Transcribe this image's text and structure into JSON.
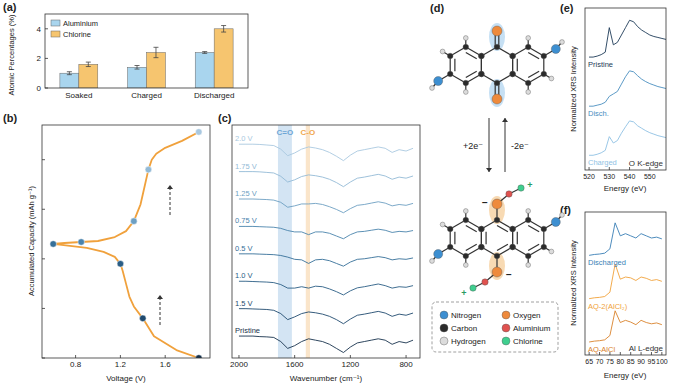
{
  "chart_data": [
    {
      "type": "bar",
      "title": "(a)",
      "y_label": "Atomic Percentages (%)",
      "categories": [
        "Soaked",
        "Charged",
        "Discharged"
      ],
      "series": [
        {
          "name": "Aluminium",
          "color": "#a9d5ee",
          "values": [
            1.0,
            1.4,
            2.4
          ],
          "errors": [
            0.1,
            0.12,
            0.06
          ]
        },
        {
          "name": "Chlorine",
          "color": "#f6c56f",
          "values": [
            1.6,
            2.4,
            4.0
          ],
          "errors": [
            0.15,
            0.35,
            0.22
          ]
        }
      ],
      "ylim": [
        0,
        5
      ],
      "yticks": [
        0,
        2,
        4
      ],
      "grid": false,
      "legend": "upper left"
    },
    {
      "type": "line",
      "title": "(b)",
      "x_label": "Voltage (V)",
      "y_label": "Accumulated Capacity (mAh g⁻¹)",
      "series": [
        {
          "type": "line",
          "color": "#f0a13c",
          "x": [
            1.9,
            1.7,
            1.5,
            1.4,
            1.32,
            1.28,
            1.25,
            1.22,
            1.2,
            1.15,
            1.05,
            0.9,
            0.75,
            0.6,
            0.7,
            0.85,
            1.0,
            1.15,
            1.25,
            1.32,
            1.38,
            1.42,
            1.45,
            1.48,
            1.52,
            1.6,
            1.75,
            1.9
          ],
          "values": [
            0,
            8,
            22,
            40,
            52,
            62,
            75,
            88,
            95,
            102,
            107,
            111,
            113,
            115,
            116,
            117,
            118,
            122,
            128,
            138,
            155,
            175,
            190,
            200,
            206,
            212,
            219,
            228
          ]
        },
        {
          "type": "scatter",
          "marker": "circle",
          "x": [
            1.9,
            1.4,
            1.2,
            0.6,
            0.85,
            1.32,
            1.45,
            1.9
          ],
          "values": [
            0,
            40,
            95,
            115,
            117,
            138,
            190,
            228
          ],
          "colors": [
            "#17324d",
            "#1f4a6e",
            "#2a5d85",
            "#356f99",
            "#4b84ad",
            "#6d9fc2",
            "#93bad6",
            "#a9c8e0"
          ]
        }
      ],
      "xlim": [
        0.5,
        2.0
      ],
      "xticks": [
        0.8,
        1.2,
        1.6
      ],
      "ylim": [
        0,
        235
      ],
      "yticks": [
        0,
        50,
        100,
        150,
        200
      ],
      "tick_labels": "x",
      "grid": false
    },
    {
      "type": "line",
      "title": "(c)",
      "x_label": "Wavenumber (cm⁻¹)",
      "x": [
        2000,
        1950,
        1900,
        1850,
        1800,
        1750,
        1700,
        1650,
        1600,
        1550,
        1500,
        1450,
        1400,
        1350,
        1300,
        1250,
        1200,
        1150,
        1100,
        1050,
        1000,
        950,
        900,
        850,
        800,
        750
      ],
      "series": [
        {
          "name": "2.0 V",
          "color": "#a9c8e0",
          "values": [
            7.8,
            7.8,
            7.8,
            7.79,
            7.77,
            7.75,
            7.62,
            7.38,
            7.48,
            7.62,
            7.7,
            7.66,
            7.6,
            7.5,
            7.36,
            7.2,
            7.4,
            7.55,
            7.6,
            7.65,
            7.7,
            7.65,
            7.5,
            7.6,
            7.55,
            7.65
          ]
        },
        {
          "name": "1.75 V",
          "color": "#93bad6",
          "values": [
            6.8,
            6.8,
            6.8,
            6.79,
            6.77,
            6.75,
            6.63,
            6.42,
            6.5,
            6.62,
            6.68,
            6.65,
            6.6,
            6.52,
            6.4,
            6.25,
            6.42,
            6.56,
            6.6,
            6.65,
            6.7,
            6.64,
            6.52,
            6.6,
            6.56,
            6.64
          ]
        },
        {
          "name": "1.25 V",
          "color": "#6d9fc2",
          "values": [
            5.8,
            5.8,
            5.8,
            5.79,
            5.78,
            5.76,
            5.68,
            5.5,
            5.55,
            5.62,
            5.62,
            5.64,
            5.6,
            5.52,
            5.42,
            5.3,
            5.45,
            5.57,
            5.6,
            5.65,
            5.7,
            5.65,
            5.55,
            5.6,
            5.57,
            5.64
          ]
        },
        {
          "name": "0.75 V",
          "color": "#4b84ad",
          "values": [
            4.8,
            4.8,
            4.8,
            4.79,
            4.78,
            4.77,
            4.73,
            4.65,
            4.6,
            4.6,
            4.5,
            4.6,
            4.6,
            4.55,
            4.45,
            4.35,
            4.5,
            4.6,
            4.62,
            4.66,
            4.7,
            4.66,
            4.58,
            4.62,
            4.6,
            4.65
          ]
        },
        {
          "name": "0.5 V",
          "color": "#356f99",
          "values": [
            3.8,
            3.8,
            3.8,
            3.79,
            3.78,
            3.77,
            3.74,
            3.68,
            3.6,
            3.58,
            3.45,
            3.58,
            3.6,
            3.55,
            3.45,
            3.35,
            3.5,
            3.6,
            3.62,
            3.66,
            3.7,
            3.66,
            3.58,
            3.62,
            3.6,
            3.65
          ]
        },
        {
          "name": "1.0 V",
          "color": "#2a5d85",
          "values": [
            2.8,
            2.8,
            2.79,
            2.78,
            2.77,
            2.75,
            2.68,
            2.55,
            2.55,
            2.6,
            2.55,
            2.62,
            2.6,
            2.52,
            2.42,
            2.3,
            2.45,
            2.56,
            2.6,
            2.65,
            2.7,
            2.64,
            2.55,
            2.6,
            2.58,
            2.64
          ]
        },
        {
          "name": "1.5 V",
          "color": "#1f4a6e",
          "values": [
            1.8,
            1.8,
            1.79,
            1.78,
            1.77,
            1.74,
            1.62,
            1.4,
            1.5,
            1.62,
            1.68,
            1.65,
            1.6,
            1.52,
            1.4,
            1.25,
            1.42,
            1.56,
            1.6,
            1.65,
            1.7,
            1.64,
            1.52,
            1.6,
            1.56,
            1.64
          ]
        },
        {
          "name": "Pristine",
          "color": "#17324d",
          "values": [
            0.8,
            0.8,
            0.8,
            0.78,
            0.77,
            0.75,
            0.6,
            0.35,
            0.45,
            0.6,
            0.7,
            0.65,
            0.6,
            0.5,
            0.35,
            0.2,
            0.4,
            0.55,
            0.6,
            0.65,
            0.7,
            0.65,
            0.5,
            0.6,
            0.55,
            0.65
          ]
        }
      ],
      "xlim": [
        2050,
        700
      ],
      "xticks": [
        2000,
        1600,
        1200,
        800
      ],
      "ylim": [
        0,
        8.5
      ],
      "tick_labels": "x",
      "grid": false,
      "legend": "inline",
      "annotations": [
        {
          "text": "C=O",
          "x": [
            1720,
            1620
          ],
          "color": "#6ea6d6"
        },
        {
          "text": "C-O",
          "x": [
            1520,
            1490
          ],
          "color": "#f0a850"
        }
      ]
    },
    {
      "type": "line",
      "title": "(e)",
      "x_label": "Energy (eV)",
      "y_label": "Normalized XRS Intensity",
      "x": [
        520,
        522,
        524,
        526,
        528,
        530,
        532,
        534,
        536,
        538,
        540,
        542,
        544,
        546,
        548,
        550,
        552,
        554,
        556,
        558
      ],
      "series": [
        {
          "name": "Pristine",
          "color": "#1e3b58",
          "values": [
            2.0,
            2.0,
            2.02,
            2.05,
            2.1,
            2.6,
            2.25,
            2.3,
            2.45,
            2.6,
            2.75,
            2.72,
            2.62,
            2.55,
            2.5,
            2.45,
            2.42,
            2.4,
            2.38,
            2.36
          ]
        },
        {
          "name": "Disch.",
          "color": "#4a8ec0",
          "values": [
            1.0,
            1.0,
            1.02,
            1.04,
            1.08,
            1.2,
            1.25,
            1.3,
            1.45,
            1.6,
            1.72,
            1.7,
            1.62,
            1.55,
            1.5,
            1.46,
            1.43,
            1.4,
            1.38,
            1.36
          ]
        },
        {
          "name": "Charged",
          "color": "#8fc1e3",
          "values": [
            0.0,
            0.0,
            0.02,
            0.05,
            0.1,
            0.38,
            0.25,
            0.3,
            0.45,
            0.58,
            0.7,
            0.68,
            0.6,
            0.55,
            0.5,
            0.46,
            0.43,
            0.4,
            0.38,
            0.36
          ]
        }
      ],
      "xlim": [
        518,
        558
      ],
      "xticks": [
        520,
        530,
        540,
        550
      ],
      "ylim": [
        -0.3,
        3.0
      ],
      "tick_labels": "x",
      "grid": false,
      "legend": "inline",
      "annotations": [
        {
          "text": "O K-edge"
        }
      ]
    },
    {
      "type": "line",
      "title": "(f)",
      "x_label": "Energy (eV)",
      "y_label": "Normalized XRS Intensity",
      "x": [
        65,
        67.5,
        70,
        72.5,
        75,
        77.5,
        80,
        82.5,
        85,
        87.5,
        90,
        92.5,
        95,
        97.5,
        100
      ],
      "series": [
        {
          "name": "Discharged",
          "color": "#3a7fb6",
          "values": [
            2.0,
            2.02,
            2.03,
            2.05,
            2.15,
            2.75,
            2.45,
            2.5,
            2.45,
            2.4,
            2.5,
            2.45,
            2.4,
            2.42,
            2.38
          ]
        },
        {
          "name": "AQ-2(AlCl₂)",
          "color": "#f0a23a",
          "values": [
            1.0,
            1.02,
            1.03,
            1.05,
            1.15,
            1.8,
            1.45,
            1.5,
            1.48,
            1.42,
            1.5,
            1.47,
            1.42,
            1.44,
            1.4
          ]
        },
        {
          "name": "AQ-AlCl",
          "color": "#d9822b",
          "values": [
            0.0,
            0.02,
            0.03,
            0.05,
            0.15,
            0.72,
            0.45,
            0.5,
            0.46,
            0.4,
            0.5,
            0.45,
            0.42,
            0.44,
            0.4
          ]
        }
      ],
      "xlim": [
        63,
        102
      ],
      "xticks": [
        65,
        70,
        75,
        80,
        85,
        90,
        95,
        100
      ],
      "ylim": [
        -0.3,
        3.0
      ],
      "tick_labels": "x",
      "grid": false,
      "legend": "inline",
      "annotations": [
        {
          "text": "Al L-edge"
        }
      ]
    }
  ],
  "diagram": {
    "title": "(d)",
    "reduction": "+2e⁻",
    "oxidation": "-2e⁻",
    "charges": {
      "oxygen": "−",
      "cation": "+"
    },
    "legend": [
      {
        "name": "Nitrogen",
        "color": "#3d8fd1"
      },
      {
        "name": "Oxygen",
        "color": "#ee8a3c"
      },
      {
        "name": "Carbon",
        "color": "#2b2b2b"
      },
      {
        "name": "Aluminium",
        "color": "#e0524f"
      },
      {
        "name": "Hydrogen",
        "color": "#dcdcdc"
      },
      {
        "name": "Chlorine",
        "color": "#3fcf8f"
      }
    ]
  }
}
